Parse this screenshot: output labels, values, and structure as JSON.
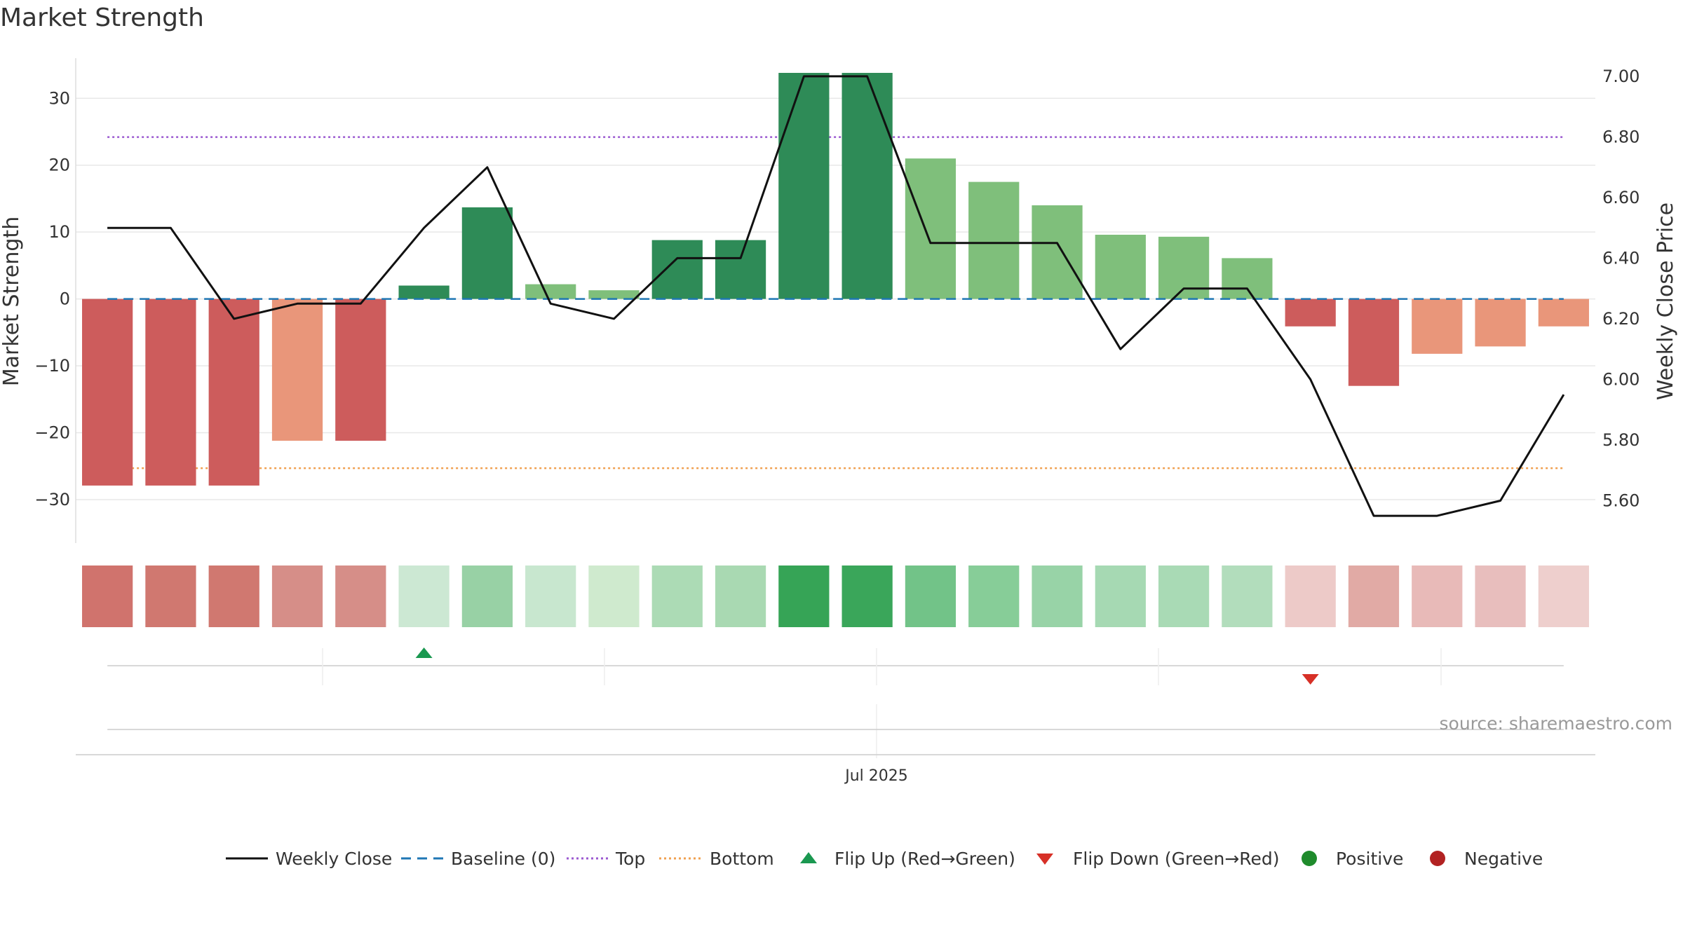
{
  "colors": {
    "strong_green": "#2e8b57",
    "light_green": "#7fbf7b",
    "strong_red": "#cd5c5c",
    "light_red": "#e9967a",
    "line": "#111111",
    "baseline": "#1f77b4",
    "top": "#9b59d0",
    "bottom": "#f0a050",
    "flip_up": "#1a9850",
    "flip_down": "#d73027",
    "positive": "#1f8b2c",
    "negative": "#b22222",
    "grid": "#e8e8e8",
    "text": "#333333"
  },
  "chart_data": {
    "type": "bar",
    "title": "Market Strength",
    "ylabel": "Market Strength",
    "y2label": "Weekly Close Price",
    "ylim": [
      -36.5,
      36
    ],
    "y2lim": [
      5.46,
      7.06
    ],
    "yticks": [
      30,
      20,
      10,
      0,
      -10,
      -20,
      -30
    ],
    "ytick_labels": [
      "30",
      "20",
      "10",
      "0",
      "−10",
      "−20",
      "−30"
    ],
    "y2ticks": [
      7.0,
      6.8,
      6.6,
      6.4,
      6.2,
      6.0,
      5.8,
      5.6
    ],
    "y2tick_labels": [
      "7.00",
      "6.80",
      "6.60",
      "6.40",
      "6.20",
      "6.00",
      "5.80",
      "5.60"
    ],
    "x_label": "Jul 2025",
    "top_line": 24.2,
    "bottom_line": -25.3,
    "values": [
      -27.9,
      -27.9,
      -27.9,
      -21.2,
      -21.2,
      2.0,
      13.7,
      2.2,
      1.3,
      8.8,
      8.8,
      33.8,
      33.8,
      21.0,
      17.5,
      14.0,
      9.6,
      9.3,
      6.1,
      -4.1,
      -13.0,
      -8.2,
      -7.1,
      -4.1
    ],
    "bar_tone": [
      "strong",
      "strong",
      "strong",
      "light",
      "strong",
      "strong",
      "strong",
      "light",
      "light",
      "strong",
      "strong",
      "strong",
      "strong",
      "light",
      "light",
      "light",
      "light",
      "light",
      "light",
      "strong",
      "strong",
      "light",
      "light",
      "light"
    ],
    "close": [
      6.5,
      6.5,
      6.2,
      6.25,
      6.25,
      6.5,
      6.7,
      6.25,
      6.2,
      6.4,
      6.4,
      7.0,
      7.0,
      6.45,
      6.45,
      6.45,
      6.1,
      6.3,
      6.3,
      6.0,
      5.55,
      5.55,
      5.6,
      5.95
    ],
    "heat_strip": [
      "#d0736d",
      "#d07870",
      "#d07870",
      "#d68e88",
      "#d68e88",
      "#cce8d3",
      "#98d1a5",
      "#c8e7cf",
      "#cfeace",
      "#acdbb5",
      "#a9d9b2",
      "#36a456",
      "#3aa65a",
      "#72c388",
      "#87cd98",
      "#98d3a7",
      "#a6d9b3",
      "#a9dab5",
      "#b2ddbc",
      "#edcac8",
      "#e1aaa5",
      "#e8bab8",
      "#e8bebd",
      "#eecfcd"
    ],
    "flip_up_index": [
      5
    ],
    "flip_down_index": [
      19
    ],
    "legend": [
      "Weekly Close",
      "Baseline (0)",
      "Top",
      "Bottom",
      "Flip Up (Red→Green)",
      "Flip Down (Green→Red)",
      "Positive",
      "Negative"
    ]
  },
  "source": "source: sharemaestro.com"
}
